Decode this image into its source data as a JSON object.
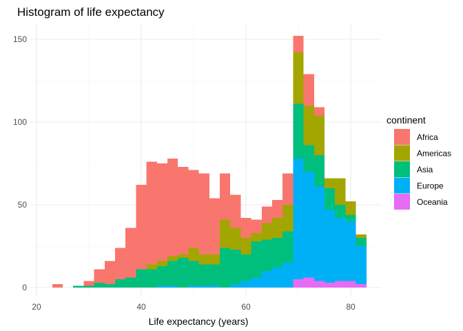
{
  "chart_data": {
    "type": "bar",
    "subtype": "stacked-histogram",
    "title": "Histogram of life expectancy",
    "xlabel": "Life expectancy (years)",
    "ylabel": "",
    "xlim": [
      20,
      85
    ],
    "ylim": [
      0,
      158
    ],
    "xticks": [
      20,
      40,
      60,
      80
    ],
    "yticks": [
      0,
      50,
      100,
      150
    ],
    "grid": true,
    "legend": {
      "title": "continent",
      "position": "right"
    },
    "bin_starts": [
      23,
      25,
      27,
      29,
      31,
      33,
      35,
      37,
      39,
      41,
      43,
      45,
      47,
      49,
      51,
      53,
      55,
      57,
      59,
      61,
      63,
      65,
      67,
      69,
      71,
      73,
      75,
      77,
      79,
      81
    ],
    "bin_width": 2,
    "series": [
      {
        "name": "Oceania",
        "color": "#E76BF3",
        "values": [
          0,
          0,
          0,
          0,
          0,
          0,
          0,
          0,
          0,
          0,
          0,
          0,
          0,
          0,
          0,
          0,
          0,
          0,
          0,
          0,
          0,
          0,
          0,
          5,
          6,
          4,
          3,
          4,
          4,
          2
        ]
      },
      {
        "name": "Europe",
        "color": "#00B0F6",
        "values": [
          0,
          0,
          0,
          0,
          0,
          0,
          0,
          0,
          0,
          0,
          1,
          1,
          0,
          1,
          1,
          1,
          0,
          2,
          4,
          6,
          10,
          12,
          15,
          73,
          64,
          57,
          44,
          38,
          36,
          23
        ]
      },
      {
        "name": "Asia",
        "color": "#00BF7D",
        "values": [
          0,
          0,
          1,
          1,
          3,
          2,
          5,
          6,
          11,
          11,
          12,
          15,
          18,
          15,
          13,
          13,
          24,
          21,
          16,
          22,
          19,
          18,
          19,
          33,
          16,
          19,
          13,
          8,
          4,
          5
        ]
      },
      {
        "name": "Americas",
        "color": "#A3A500",
        "values": [
          0,
          0,
          0,
          0,
          0,
          0,
          0,
          0,
          0,
          3,
          3,
          3,
          2,
          8,
          6,
          6,
          17,
          13,
          10,
          5,
          10,
          12,
          16,
          31,
          24,
          24,
          6,
          16,
          8,
          2
        ]
      },
      {
        "name": "Africa",
        "color": "#F8766D",
        "values": [
          2,
          0,
          0,
          3,
          8,
          14,
          19,
          30,
          51,
          62,
          59,
          59,
          53,
          47,
          49,
          34,
          28,
          20,
          12,
          8,
          10,
          11,
          19,
          10,
          19,
          5,
          0,
          0,
          0,
          0
        ]
      }
    ]
  }
}
